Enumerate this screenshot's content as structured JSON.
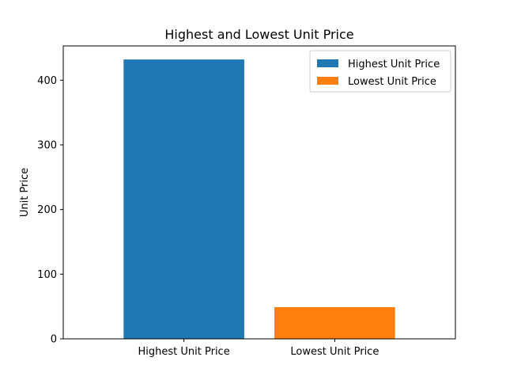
{
  "chart_data": {
    "type": "bar",
    "title": "Highest and Lowest Unit Price",
    "xlabel": "",
    "ylabel": "Unit Price",
    "categories": [
      "Highest Unit Price",
      "Lowest Unit Price"
    ],
    "values": [
      432,
      49
    ],
    "colors": [
      "#1f77b4",
      "#ff7f0e"
    ],
    "ylim": [
      0,
      453
    ],
    "yticks": [
      0,
      100,
      200,
      300,
      400
    ],
    "grid": false,
    "legend": {
      "placement": "top-right",
      "entries": [
        {
          "label": "Highest Unit Price",
          "color": "#1f77b4"
        },
        {
          "label": "Lowest Unit Price",
          "color": "#ff7f0e"
        }
      ]
    }
  }
}
